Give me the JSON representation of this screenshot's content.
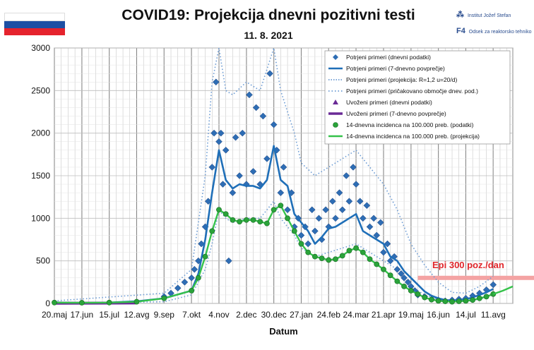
{
  "header": {
    "title": "COVID19: Projekcija  dnevni pozitivni testi",
    "subtitle": "11. 8. 2021",
    "logo_ijs_text": "Institut Jožef Stefan",
    "logo_f4_mark": "F4",
    "logo_f4_text": "Odsek za reaktorsko tehniko"
  },
  "colors": {
    "diamond": "#2e6db4",
    "avg": "#1f6fb8",
    "proj_dotted": "#6a9ad3",
    "imported": "#6a2a96",
    "incidence_point": "#2aa33a",
    "incidence_line": "#35c24a",
    "epi_band": "#f4a3a3",
    "epi_text": "#e0262a",
    "grid": "#bdbdbd",
    "flag_white": "#ffffff",
    "flag_blue": "#1d4fa3",
    "flag_red": "#e5232d"
  },
  "chart_data": {
    "type": "scatter",
    "xlabel": "Datum",
    "ylim": [
      0,
      3000
    ],
    "yticks": [
      0,
      500,
      1000,
      1500,
      2000,
      2500,
      3000
    ],
    "xticks": [
      "20.maj",
      "17.jun",
      "15.jul",
      "12.avg",
      "9.sep",
      "7.okt",
      "4.nov",
      "2.dec",
      "30.dec",
      "27.jan",
      "24.feb",
      "24.mar",
      "21.apr",
      "19.maj",
      "16.jun",
      "14.jul",
      "11.avg"
    ],
    "grid": true,
    "legend_position": "top-right",
    "legend": [
      "Potrjeni primeri (dnevni podatki)",
      "Potrjeni primeri (7-dnevno povprečje)",
      "Potrjeni primeri (projekcija: R=1,2 u=20/d)",
      "Potrjeni primeri (pričakovano območje dnev. pod.)",
      "Uvoženi primeri (dnevni podatki)",
      "Uvoženi primeri (7-dnevno povprečje)",
      "14-dnevna incidenca na 100.000 preb. (podatki)",
      "14-dnevna incidenca na 100.000 preb. (projekcija)"
    ],
    "annotation": "Epi 300 poz./dan",
    "series": [
      {
        "name": "Potrjeni primeri (7-dnevno povprečje)",
        "x": [
          "20.maj",
          "17.jun",
          "15.jul",
          "12.avg",
          "9.sep",
          "7.okt",
          "14.okt",
          "21.okt",
          "28.okt",
          "4.nov",
          "11.nov",
          "18.nov",
          "25.nov",
          "2.dec",
          "9.dec",
          "16.dec",
          "23.dec",
          "30.dec",
          "6.jan",
          "13.jan",
          "20.jan",
          "27.jan",
          "3.feb",
          "10.feb",
          "17.feb",
          "24.feb",
          "3.mar",
          "10.mar",
          "17.mar",
          "24.mar",
          "31.mar",
          "7.apr",
          "14.apr",
          "21.apr",
          "28.apr",
          "5.maj",
          "12.maj",
          "19.maj",
          "26.maj",
          "2.jun",
          "9.jun",
          "16.jun",
          "23.jun",
          "30.jun",
          "7.jul",
          "14.jul",
          "21.jul",
          "28.jul",
          "4.avg",
          "11.avg"
        ],
        "values": [
          12,
          5,
          10,
          25,
          60,
          150,
          350,
          750,
          1300,
          1800,
          1450,
          1350,
          1400,
          1380,
          1380,
          1350,
          1450,
          1850,
          1450,
          1380,
          1050,
          950,
          850,
          700,
          780,
          880,
          900,
          950,
          1000,
          1050,
          850,
          800,
          750,
          700,
          550,
          500,
          380,
          300,
          220,
          140,
          90,
          60,
          40,
          35,
          40,
          50,
          70,
          100,
          130,
          170
        ]
      },
      {
        "name": "Potrjeni primeri (pričakovano območje dnev. pod.) - zgornja meja",
        "x": [
          "20.maj",
          "9.sep",
          "7.okt",
          "21.okt",
          "28.okt",
          "4.nov",
          "11.nov",
          "18.nov",
          "2.dec",
          "16.dec",
          "30.dec",
          "6.jan",
          "20.jan",
          "27.jan",
          "10.feb",
          "24.feb",
          "10.mar",
          "24.mar",
          "7.apr",
          "21.apr",
          "5.maj",
          "19.maj",
          "2.jun",
          "16.jun",
          "30.jun",
          "14.jul",
          "28.jul",
          "11.avg"
        ],
        "values": [
          30,
          120,
          400,
          1500,
          2600,
          3000,
          2500,
          2450,
          2600,
          2500,
          3000,
          2500,
          2000,
          1650,
          1500,
          1600,
          1700,
          1800,
          1600,
          1400,
          1100,
          700,
          450,
          250,
          130,
          120,
          200,
          320
        ]
      },
      {
        "name": "Potrjeni primeri (pričakovano območje dnev. pod.) - spodnja meja",
        "x": [
          "20.maj",
          "9.sep",
          "7.okt",
          "21.okt",
          "28.okt",
          "4.nov",
          "11.nov",
          "18.nov",
          "2.dec",
          "16.dec",
          "30.dec",
          "6.jan",
          "20.jan",
          "27.jan",
          "10.feb",
          "24.feb",
          "10.mar",
          "24.mar",
          "7.apr",
          "21.apr",
          "5.maj",
          "19.maj",
          "2.jun",
          "16.jun",
          "30.jun",
          "14.jul",
          "28.jul",
          "11.avg"
        ],
        "values": [
          0,
          20,
          100,
          400,
          700,
          1100,
          1000,
          950,
          1000,
          1000,
          1200,
          1000,
          800,
          650,
          550,
          600,
          650,
          700,
          600,
          500,
          400,
          200,
          100,
          50,
          20,
          20,
          50,
          100
        ]
      },
      {
        "name": "14-dnevna incidenca na 100.000 preb. (podatki)",
        "x": [
          "20.maj",
          "17.jun",
          "15.jul",
          "12.avg",
          "9.sep",
          "7.okt",
          "14.okt",
          "21.okt",
          "28.okt",
          "4.nov",
          "11.nov",
          "18.nov",
          "25.nov",
          "2.dec",
          "9.dec",
          "16.dec",
          "23.dec",
          "30.dec",
          "6.jan",
          "13.jan",
          "20.jan",
          "27.jan",
          "3.feb",
          "10.feb",
          "17.feb",
          "24.feb",
          "3.mar",
          "10.mar",
          "17.mar",
          "24.mar",
          "31.mar",
          "7.apr",
          "14.apr",
          "21.apr",
          "28.apr",
          "5.maj",
          "12.maj",
          "19.maj",
          "26.maj",
          "2.jun",
          "9.jun",
          "16.jun",
          "23.jun",
          "30.jun",
          "7.jul",
          "14.jul",
          "21.jul",
          "28.jul",
          "4.avg",
          "11.avg"
        ],
        "values": [
          10,
          8,
          10,
          20,
          60,
          150,
          300,
          550,
          850,
          1100,
          1050,
          980,
          960,
          980,
          980,
          960,
          940,
          1100,
          1150,
          1000,
          850,
          700,
          600,
          550,
          530,
          510,
          520,
          560,
          620,
          650,
          600,
          520,
          460,
          400,
          330,
          260,
          200,
          150,
          110,
          70,
          45,
          30,
          25,
          20,
          25,
          30,
          40,
          60,
          80,
          110
        ]
      },
      {
        "name": "14-dnevna incidenca na 100.000 preb. (projekcija)",
        "x": [
          "11.avg",
          "18.avg",
          "25.avg"
        ],
        "values": [
          110,
          150,
          200
        ]
      },
      {
        "name": "Uvoženi primeri (7-dnevno povprečje)",
        "x": [
          "20.maj",
          "11.avg"
        ],
        "values": [
          2,
          5
        ]
      }
    ],
    "daily_points": [
      {
        "x": "9.sep",
        "y": 80
      },
      {
        "x": "16.sep",
        "y": 120
      },
      {
        "x": "23.sep",
        "y": 180
      },
      {
        "x": "30.sep",
        "y": 250
      },
      {
        "x": "7.okt",
        "y": 300
      },
      {
        "x": "10.okt",
        "y": 400
      },
      {
        "x": "14.okt",
        "y": 500
      },
      {
        "x": "17.okt",
        "y": 700
      },
      {
        "x": "21.okt",
        "y": 900
      },
      {
        "x": "24.okt",
        "y": 1200
      },
      {
        "x": "28.okt",
        "y": 1600
      },
      {
        "x": "30.okt",
        "y": 2000
      },
      {
        "x": "1.nov",
        "y": 2600
      },
      {
        "x": "4.nov",
        "y": 1900
      },
      {
        "x": "6.nov",
        "y": 2000
      },
      {
        "x": "8.nov",
        "y": 1400
      },
      {
        "x": "11.nov",
        "y": 1800
      },
      {
        "x": "14.nov",
        "y": 500
      },
      {
        "x": "18.nov",
        "y": 1300
      },
      {
        "x": "21.nov",
        "y": 1950
      },
      {
        "x": "25.nov",
        "y": 1500
      },
      {
        "x": "28.nov",
        "y": 2000
      },
      {
        "x": "2.dec",
        "y": 1400
      },
      {
        "x": "5.dec",
        "y": 2450
      },
      {
        "x": "9.dec",
        "y": 1550
      },
      {
        "x": "12.dec",
        "y": 2300
      },
      {
        "x": "16.dec",
        "y": 1400
      },
      {
        "x": "19.dec",
        "y": 2200
      },
      {
        "x": "23.dec",
        "y": 1700
      },
      {
        "x": "26.dec",
        "y": 2700
      },
      {
        "x": "30.dec",
        "y": 2100
      },
      {
        "x": "2.jan",
        "y": 1800
      },
      {
        "x": "6.jan",
        "y": 1300
      },
      {
        "x": "9.jan",
        "y": 1600
      },
      {
        "x": "13.jan",
        "y": 1100
      },
      {
        "x": "17.jan",
        "y": 1300
      },
      {
        "x": "20.jan",
        "y": 900
      },
      {
        "x": "24.jan",
        "y": 1000
      },
      {
        "x": "27.jan",
        "y": 800
      },
      {
        "x": "31.jan",
        "y": 900
      },
      {
        "x": "3.feb",
        "y": 700
      },
      {
        "x": "7.feb",
        "y": 1100
      },
      {
        "x": "10.feb",
        "y": 850
      },
      {
        "x": "14.feb",
        "y": 1000
      },
      {
        "x": "17.feb",
        "y": 750
      },
      {
        "x": "21.feb",
        "y": 1100
      },
      {
        "x": "24.feb",
        "y": 900
      },
      {
        "x": "28.feb",
        "y": 1200
      },
      {
        "x": "3.mar",
        "y": 1000
      },
      {
        "x": "7.mar",
        "y": 1300
      },
      {
        "x": "10.mar",
        "y": 1100
      },
      {
        "x": "14.mar",
        "y": 1500
      },
      {
        "x": "17.mar",
        "y": 1200
      },
      {
        "x": "21.mar",
        "y": 1600
      },
      {
        "x": "24.mar",
        "y": 1400
      },
      {
        "x": "28.mar",
        "y": 1200
      },
      {
        "x": "31.mar",
        "y": 1000
      },
      {
        "x": "4.apr",
        "y": 1150
      },
      {
        "x": "7.apr",
        "y": 900
      },
      {
        "x": "11.apr",
        "y": 1000
      },
      {
        "x": "14.apr",
        "y": 800
      },
      {
        "x": "18.apr",
        "y": 950
      },
      {
        "x": "21.apr",
        "y": 600
      },
      {
        "x": "25.apr",
        "y": 700
      },
      {
        "x": "28.apr",
        "y": 500
      },
      {
        "x": "2.maj",
        "y": 550
      },
      {
        "x": "5.maj",
        "y": 400
      },
      {
        "x": "9.maj",
        "y": 350
      },
      {
        "x": "12.maj",
        "y": 300
      },
      {
        "x": "16.maj",
        "y": 250
      },
      {
        "x": "19.maj",
        "y": 200
      },
      {
        "x": "23.maj",
        "y": 150
      },
      {
        "x": "26.maj",
        "y": 100
      },
      {
        "x": "2.jun",
        "y": 80
      },
      {
        "x": "9.jun",
        "y": 50
      },
      {
        "x": "16.jun",
        "y": 40
      },
      {
        "x": "23.jun",
        "y": 30
      },
      {
        "x": "30.jun",
        "y": 40
      },
      {
        "x": "7.jul",
        "y": 50
      },
      {
        "x": "14.jul",
        "y": 60
      },
      {
        "x": "21.jul",
        "y": 90
      },
      {
        "x": "28.jul",
        "y": 120
      },
      {
        "x": "4.avg",
        "y": 160
      },
      {
        "x": "11.avg",
        "y": 220
      }
    ],
    "epi_level": 300
  }
}
